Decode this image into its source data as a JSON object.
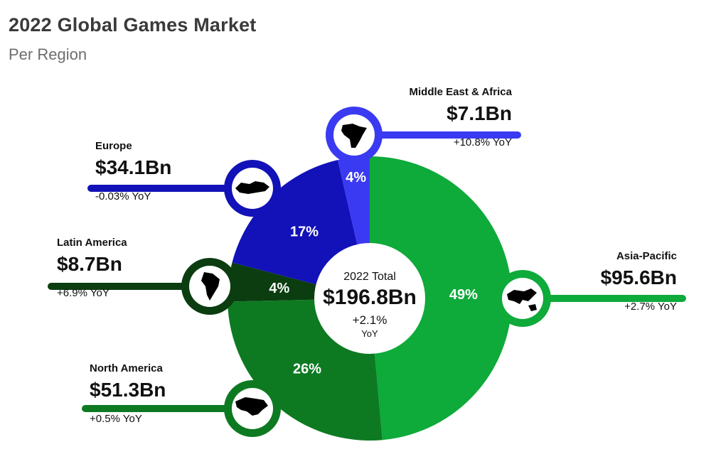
{
  "header": {
    "title": "2022 Global Games Market",
    "subtitle": "Per Region"
  },
  "center": {
    "label": "2022 Total",
    "value": "$196.8Bn",
    "growth": "+2.1%",
    "growth_unit": "YoY"
  },
  "colors": {
    "asia_pacific": "#0eaa3a",
    "north_america": "#0d7a22",
    "latin_america": "#0b3d10",
    "europe": "#1212b8",
    "middle_east_africa": "#3a3af2"
  },
  "chart_data": {
    "type": "pie",
    "variant": "donut",
    "total": 196.8,
    "total_label": "$196.8Bn",
    "unit": "$Bn",
    "slices": [
      {
        "region": "Asia-Pacific",
        "value": 95.6,
        "value_label": "$95.6Bn",
        "percent": 49,
        "percent_label": "49%",
        "yoy": "+2.7% YoY",
        "icon": "asia-pacific-map-icon"
      },
      {
        "region": "North America",
        "value": 51.3,
        "value_label": "$51.3Bn",
        "percent": 26,
        "percent_label": "26%",
        "yoy": "+0.5% YoY",
        "icon": "north-america-map-icon"
      },
      {
        "region": "Latin America",
        "value": 8.7,
        "value_label": "$8.7Bn",
        "percent": 4,
        "percent_label": "4%",
        "yoy": "+6.9% YoY",
        "icon": "latin-america-map-icon"
      },
      {
        "region": "Europe",
        "value": 34.1,
        "value_label": "$34.1Bn",
        "percent": 17,
        "percent_label": "17%",
        "yoy": "-0.03% YoY",
        "icon": "europe-map-icon"
      },
      {
        "region": "Middle East & Africa",
        "value": 7.1,
        "value_label": "$7.1Bn",
        "percent": 4,
        "percent_label": "4%",
        "yoy": "+10.8% YoY",
        "icon": "africa-map-icon"
      }
    ]
  }
}
